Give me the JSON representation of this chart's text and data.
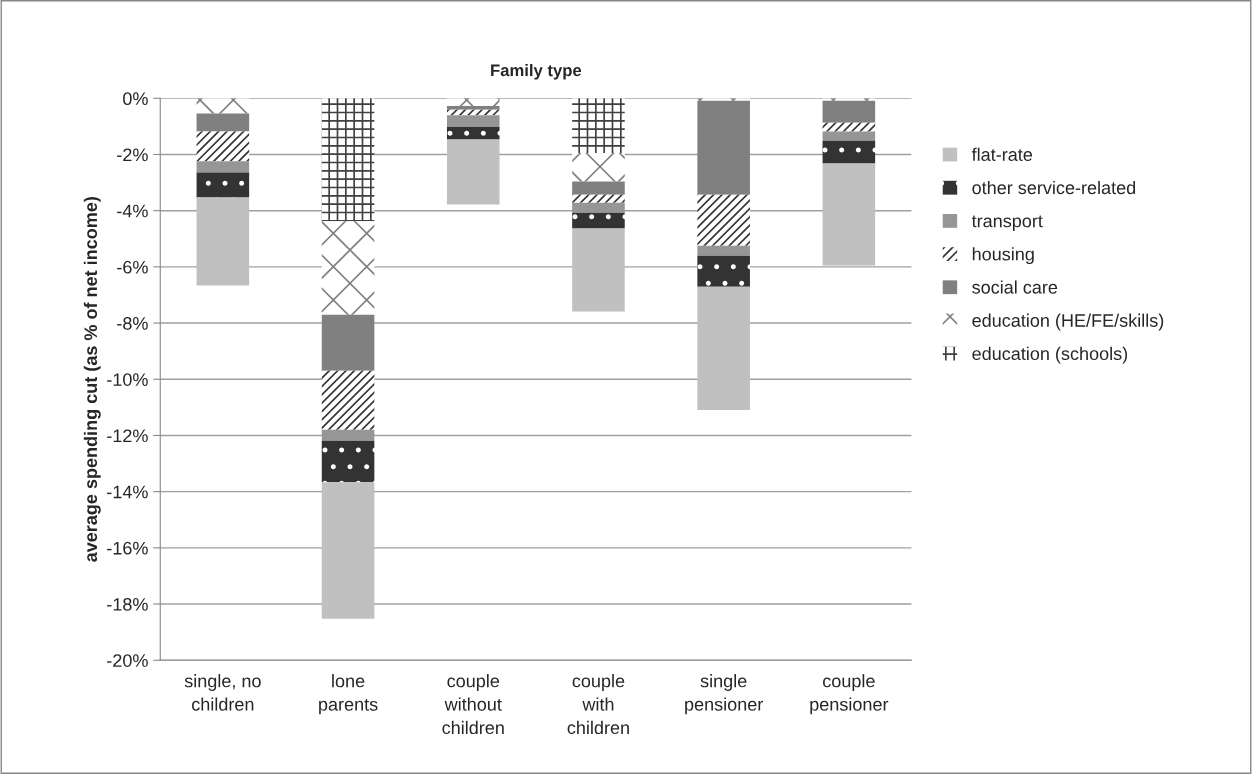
{
  "chart_data": {
    "type": "bar",
    "title": "Family type",
    "ylabel": "average spending cut (as % of net income)",
    "categories": [
      "single, no\nchildren",
      "lone\nparents",
      "couple\nwithout\nchildren",
      "couple\nwith\nchildren",
      "single\npensioner",
      "couple\npensioner"
    ],
    "stacked": true,
    "series": [
      {
        "name": "education (schools)",
        "color": "#404040",
        "values": [
          0,
          -4.38,
          0,
          -1.95,
          0,
          0
        ]
      },
      {
        "name": "education (HE/FE/skills)",
        "color": "#808080",
        "values": [
          -0.54,
          -3.32,
          -0.27,
          -1.01,
          -0.09,
          -0.09
        ]
      },
      {
        "name": "social care",
        "color": "#808080",
        "values": [
          -0.64,
          -2.0,
          -0.14,
          -0.47,
          -3.34,
          -0.78
        ]
      },
      {
        "name": "housing",
        "color": "#333333",
        "values": [
          -1.06,
          -2.1,
          -0.19,
          -0.29,
          -1.82,
          -0.31
        ]
      },
      {
        "name": "transport",
        "color": "#969696",
        "values": [
          -0.4,
          -0.39,
          -0.41,
          -0.35,
          -0.35,
          -0.33
        ]
      },
      {
        "name": "other service-related",
        "color": "#333333",
        "values": [
          -0.89,
          -1.48,
          -0.46,
          -0.56,
          -1.11,
          -0.81
        ]
      },
      {
        "name": "flat-rate",
        "color": "#c0c0c0",
        "values": [
          -3.13,
          -4.85,
          -2.31,
          -2.96,
          -4.38,
          -3.63
        ]
      }
    ],
    "ylim": [
      -20,
      0
    ],
    "yticks": [
      {
        "value": -20,
        "label": "-20%"
      },
      {
        "value": -18,
        "label": "-18%"
      },
      {
        "value": -16,
        "label": "-16%"
      },
      {
        "value": -14,
        "label": "-14%"
      },
      {
        "value": -12,
        "label": "-12%"
      },
      {
        "value": -10,
        "label": "-10%"
      },
      {
        "value": -8,
        "label": "-8%"
      },
      {
        "value": -6,
        "label": "-6%"
      },
      {
        "value": -4,
        "label": "-4%"
      },
      {
        "value": -2,
        "label": "-2%"
      },
      {
        "value": 0,
        "label": "0%"
      }
    ],
    "grid": "y",
    "legend": "right"
  }
}
